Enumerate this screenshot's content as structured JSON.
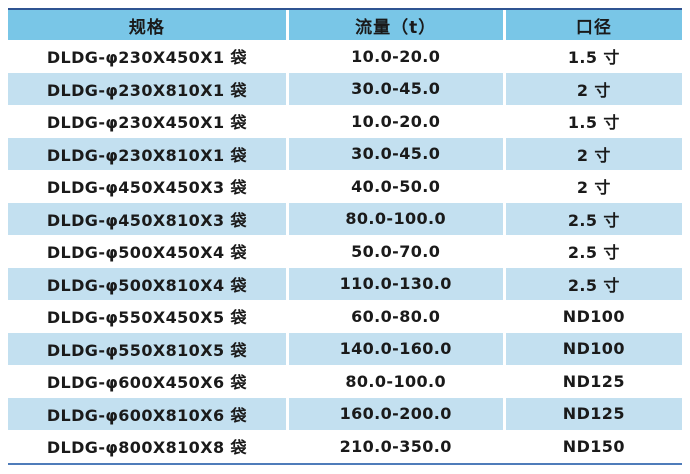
{
  "table": {
    "columns": [
      {
        "key": "spec",
        "label": "规格"
      },
      {
        "key": "flow",
        "label": "流量（t）"
      },
      {
        "key": "caliber",
        "label": "口径"
      }
    ],
    "rows": [
      {
        "spec": "DLDG-φ230X450X1 袋",
        "flow": "10.0-20.0",
        "caliber": "1.5 寸"
      },
      {
        "spec": "DLDG-φ230X810X1 袋",
        "flow": "30.0-45.0",
        "caliber": "2 寸"
      },
      {
        "spec": "DLDG-φ230X450X1 袋",
        "flow": "10.0-20.0",
        "caliber": "1.5 寸"
      },
      {
        "spec": "DLDG-φ230X810X1 袋",
        "flow": "30.0-45.0",
        "caliber": "2 寸"
      },
      {
        "spec": "DLDG-φ450X450X3 袋",
        "flow": "40.0-50.0",
        "caliber": "2 寸"
      },
      {
        "spec": "DLDG-φ450X810X3 袋",
        "flow": "80.0-100.0",
        "caliber": "2.5 寸"
      },
      {
        "spec": "DLDG-φ500X450X4 袋",
        "flow": "50.0-70.0",
        "caliber": "2.5 寸"
      },
      {
        "spec": "DLDG-φ500X810X4 袋",
        "flow": "110.0-130.0",
        "caliber": "2.5 寸"
      },
      {
        "spec": "DLDG-φ550X450X5 袋",
        "flow": "60.0-80.0",
        "caliber": "ND100"
      },
      {
        "spec": "DLDG-φ550X810X5 袋",
        "flow": "140.0-160.0",
        "caliber": "ND100"
      },
      {
        "spec": "DLDG-φ600X450X6 袋",
        "flow": "80.0-100.0",
        "caliber": "ND125"
      },
      {
        "spec": "DLDG-φ600X810X6 袋",
        "flow": "160.0-200.0",
        "caliber": "ND125"
      },
      {
        "spec": "DLDG-φ800X810X8 袋",
        "flow": "210.0-350.0",
        "caliber": "ND150"
      }
    ],
    "colors": {
      "page_bg": "#ffffff",
      "header_bg": "#79c6e7",
      "row_bg": "#ffffff",
      "row_alt_bg": "#c3e0f0",
      "top_border": "#2f5492",
      "bottom_border": "#4f7cba",
      "separator": "#ffffff",
      "text": "#1a1a1a"
    }
  }
}
